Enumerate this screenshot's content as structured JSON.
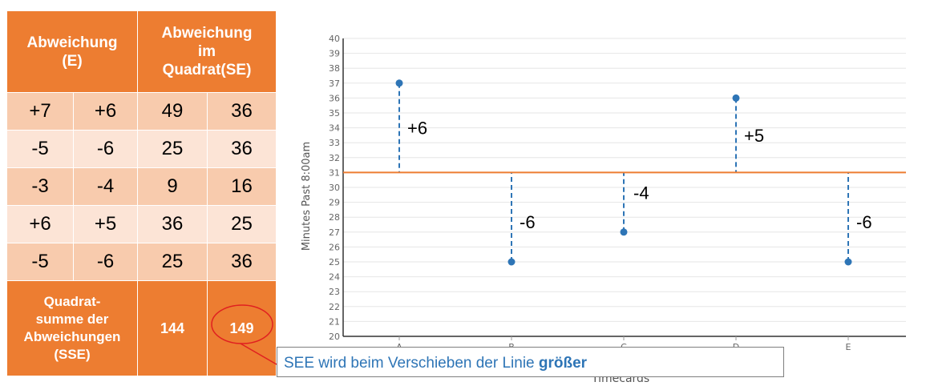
{
  "table": {
    "header_left": [
      "Abweichung",
      "(E)"
    ],
    "header_right": [
      "Abweichung",
      "im",
      "Quadrat(SE)"
    ],
    "rows": [
      [
        "+7",
        "+6",
        "49",
        "36"
      ],
      [
        "-5",
        "-6",
        "25",
        "36"
      ],
      [
        "-3",
        "-4",
        "9",
        "16"
      ],
      [
        "+6",
        "+5",
        "36",
        "25"
      ],
      [
        "-5",
        "-6",
        "25",
        "36"
      ]
    ],
    "footer_label": [
      "Quadrat-",
      "summe der",
      "Abweichungen",
      "(SSE)"
    ],
    "footer_values": [
      "144",
      "149"
    ],
    "colors": {
      "header": "#ED7D31",
      "row_dark": "#F8CBAD",
      "row_light": "#FCE4D6"
    }
  },
  "callout": {
    "text": "SEE wird beim Verschieben der Linie ",
    "emphasis": "größer"
  },
  "chart_data": {
    "type": "scatter",
    "categories": [
      "A",
      "B",
      "C",
      "D",
      "E"
    ],
    "values": [
      37,
      25,
      27,
      36,
      25
    ],
    "reference_line": 31,
    "deviation_labels": [
      "+6",
      "-6",
      "-4",
      "+5",
      "-6"
    ],
    "ylabel": "Minutes Past 8:00am",
    "xlabel": "Timecards",
    "ylim": [
      20,
      40
    ],
    "yticks": [
      20,
      21,
      22,
      23,
      24,
      25,
      26,
      27,
      28,
      29,
      30,
      31,
      32,
      33,
      34,
      35,
      36,
      37,
      38,
      39,
      40
    ],
    "grid": true,
    "colors": {
      "point": "#2E75B6",
      "line": "#ED7D31",
      "residual": "#2E75B6"
    }
  }
}
